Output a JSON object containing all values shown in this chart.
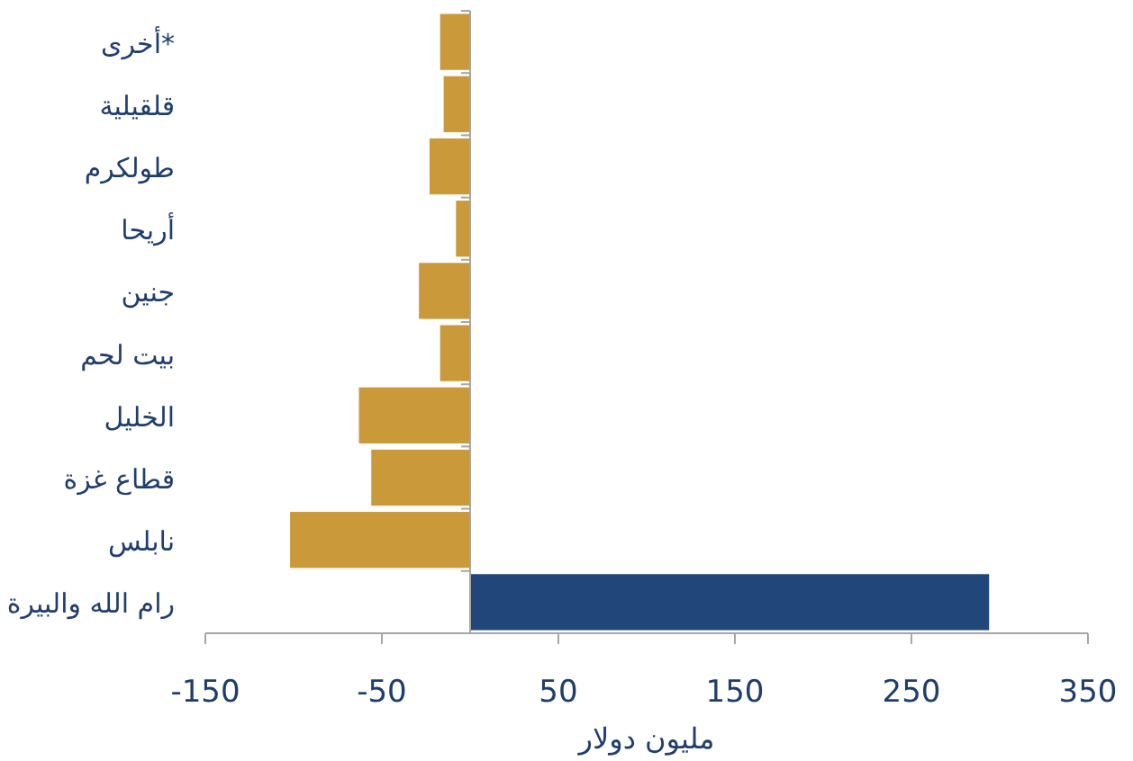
{
  "chart_data": {
    "type": "bar",
    "orientation": "horizontal",
    "xlabel": "مليون دولار",
    "categories": [
      "أخرى*",
      "قلقيلية",
      "طولكرم",
      "أريحا",
      "جنين",
      "بيت لحم",
      "الخليل",
      "قطاع غزة",
      "نابلس",
      "رام الله والبيرة"
    ],
    "values": [
      -17,
      -15,
      -23,
      -8,
      -29,
      -17,
      -63,
      -56,
      -102,
      294
    ],
    "colors": [
      "#c9993a",
      "#c9993a",
      "#c9993a",
      "#c9993a",
      "#c9993a",
      "#c9993a",
      "#c9993a",
      "#c9993a",
      "#c9993a",
      "#21477a"
    ],
    "xlim": [
      -150,
      350
    ],
    "xticks": [
      -150,
      -50,
      50,
      150,
      250,
      350
    ]
  }
}
